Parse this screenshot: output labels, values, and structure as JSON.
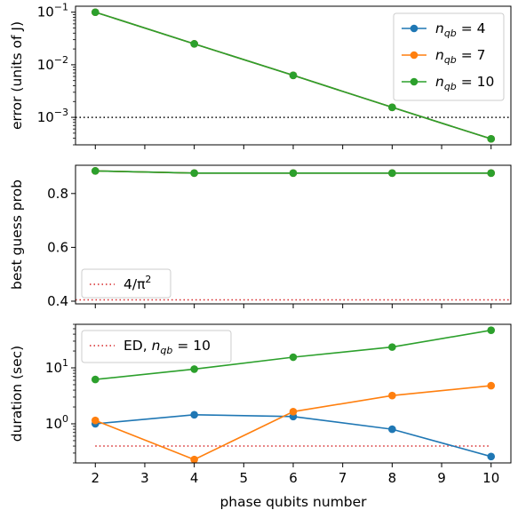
{
  "colors": {
    "nqb4": "#1f77b4",
    "nqb7": "#ff7f0e",
    "nqb10": "#2ca02c",
    "reference": "#d62728",
    "threshold": "#000000"
  },
  "chart_data": [
    {
      "type": "line",
      "yscale": "log",
      "ylabel": "error (units of J)",
      "xlabel": "",
      "x": [
        2,
        4,
        6,
        8,
        10
      ],
      "xlim": [
        1.6,
        10.4
      ],
      "ylim": [
        0.0003,
        0.13
      ],
      "yticks": [
        0.001,
        0.01,
        0.1
      ],
      "ytick_labels": [
        {
          "base": "10",
          "exp": "−3"
        },
        {
          "base": "10",
          "exp": "−2"
        },
        {
          "base": "10",
          "exp": "−1"
        }
      ],
      "series": [
        {
          "name": "n_qb = 4",
          "color_key": "nqb4",
          "values": [
            0.1,
            0.025,
            0.0063,
            0.00155,
            0.00039
          ]
        },
        {
          "name": "n_qb = 7",
          "color_key": "nqb7",
          "values": [
            0.1,
            0.025,
            0.0063,
            0.00155,
            0.00039
          ]
        },
        {
          "name": "n_qb = 10",
          "color_key": "nqb10",
          "values": [
            0.1,
            0.025,
            0.0063,
            0.00155,
            0.00039
          ]
        }
      ],
      "hline": {
        "y": 0.001,
        "style": "dotted",
        "color_key": "threshold"
      },
      "legend": {
        "placement": "top-right",
        "entries": [
          {
            "base": "n",
            "sub": "qb",
            "rhs": " = 4",
            "color_key": "nqb4"
          },
          {
            "base": "n",
            "sub": "qb",
            "rhs": " = 7",
            "color_key": "nqb7"
          },
          {
            "base": "n",
            "sub": "qb",
            "rhs": " = 10",
            "color_key": "nqb10"
          }
        ]
      }
    },
    {
      "type": "line",
      "yscale": "linear",
      "ylabel": "best guess prob",
      "xlabel": "",
      "x": [
        2,
        4,
        6,
        8,
        10
      ],
      "xlim": [
        1.6,
        10.4
      ],
      "ylim": [
        0.39,
        0.905
      ],
      "yticks": [
        0.4,
        0.6,
        0.8
      ],
      "ytick_labels": [
        "0.4",
        "0.6",
        "0.8"
      ],
      "series": [
        {
          "name": "n_qb = 4",
          "color_key": "nqb4",
          "values": [
            0.884,
            0.876,
            0.876,
            0.876,
            0.876
          ]
        },
        {
          "name": "n_qb = 7",
          "color_key": "nqb7",
          "values": [
            0.884,
            0.876,
            0.876,
            0.876,
            0.876
          ]
        },
        {
          "name": "n_qb = 10",
          "color_key": "nqb10",
          "values": [
            0.884,
            0.876,
            0.876,
            0.876,
            0.876
          ]
        }
      ],
      "hline": {
        "y": 0.405,
        "style": "dotted",
        "color_key": "reference",
        "label": "4/π²"
      },
      "legend": {
        "placement": "bottom-left",
        "entries": [
          {
            "text": "4/π",
            "sup": "2",
            "color_key": "reference",
            "style": "dotted"
          }
        ]
      }
    },
    {
      "type": "line",
      "yscale": "log",
      "ylabel": "duration (sec)",
      "xlabel": "phase qubits number",
      "x": [
        2,
        4,
        6,
        8,
        10
      ],
      "xlim": [
        1.6,
        10.4
      ],
      "ylim": [
        0.2,
        60
      ],
      "xticks": [
        2,
        3,
        4,
        5,
        6,
        7,
        8,
        9,
        10
      ],
      "xtick_labels": [
        "2",
        "3",
        "4",
        "5",
        "6",
        "7",
        "8",
        "9",
        "10"
      ],
      "yticks": [
        1,
        10
      ],
      "ytick_labels": [
        {
          "base": "10",
          "exp": "0"
        },
        {
          "base": "10",
          "exp": "1"
        }
      ],
      "series": [
        {
          "name": "n_qb = 4",
          "color_key": "nqb4",
          "values": [
            1.0,
            1.45,
            1.35,
            0.8,
            0.26
          ]
        },
        {
          "name": "n_qb = 7",
          "color_key": "nqb7",
          "values": [
            1.15,
            0.23,
            1.65,
            3.2,
            4.8
          ]
        },
        {
          "name": "n_qb = 10",
          "color_key": "nqb10",
          "values": [
            6.2,
            9.5,
            15.5,
            23.5,
            47.0
          ]
        }
      ],
      "hline": {
        "y": 0.4,
        "x_from": 2,
        "x_to": 10,
        "style": "dotted",
        "color_key": "reference",
        "label": "ED, n_qb = 10"
      },
      "legend": {
        "placement": "top-left",
        "entries": [
          {
            "text": "ED, ",
            "base": "n",
            "sub": "qb",
            "rhs": " = 10",
            "color_key": "reference",
            "style": "dotted"
          }
        ]
      }
    }
  ]
}
